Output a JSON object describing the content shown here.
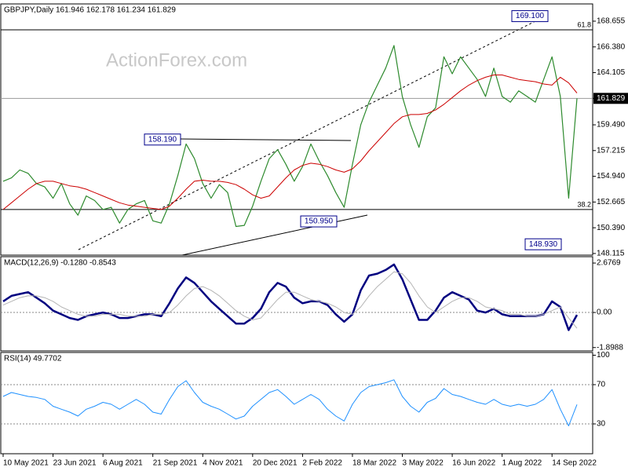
{
  "watermark": "ActionForex.com",
  "chart_data": [
    {
      "type": "line",
      "title": "GBPJPY,Daily 161.946 162.178 161.234 161.829",
      "series": [
        {
          "color": "#2d8a2d",
          "width": 1.2,
          "values": [
            154.5,
            154.8,
            155.5,
            155.2,
            154.3,
            154.0,
            153.0,
            154.3,
            152.5,
            151.5,
            153.2,
            152.8,
            152.0,
            152.2,
            150.8,
            152.0,
            152.5,
            152.8,
            151.0,
            150.8,
            152.5,
            155.0,
            157.8,
            156.5,
            154.3,
            153.0,
            154.2,
            153.5,
            150.5,
            150.6,
            152.3,
            154.5,
            156.5,
            157.3,
            156.0,
            154.5,
            155.8,
            157.8,
            156.3,
            155.0,
            153.5,
            152.2,
            156.0,
            159.5,
            161.5,
            163.0,
            164.5,
            166.5,
            162.0,
            159.5,
            157.5,
            160.2,
            161.0,
            165.5,
            164.0,
            165.5,
            164.5,
            163.5,
            162.0,
            164.5,
            162.0,
            161.5,
            162.5,
            162.0,
            161.5,
            163.5,
            165.5,
            162.0,
            153.0,
            161.829
          ]
        },
        {
          "color": "#cc0000",
          "width": 1,
          "values": [
            152.0,
            152.6,
            153.2,
            153.8,
            154.3,
            154.5,
            154.5,
            154.3,
            154.1,
            154.0,
            153.8,
            153.5,
            153.2,
            152.9,
            152.6,
            152.4,
            152.3,
            152.2,
            152.1,
            152.0,
            152.3,
            153.0,
            153.8,
            154.5,
            154.6,
            154.5,
            154.5,
            154.4,
            154.2,
            153.8,
            153.3,
            153.0,
            153.2,
            154.0,
            154.8,
            155.5,
            155.9,
            156.1,
            156.0,
            155.8,
            155.5,
            155.3,
            155.6,
            156.3,
            157.2,
            158.0,
            158.8,
            159.6,
            160.2,
            160.4,
            160.4,
            160.5,
            160.8,
            161.3,
            161.9,
            162.5,
            163.0,
            163.4,
            163.7,
            163.9,
            163.9,
            163.7,
            163.5,
            163.4,
            163.3,
            163.1,
            163.0,
            163.7,
            163.2,
            162.3
          ]
        }
      ],
      "ylim": [
        147.97,
        170.18
      ],
      "yticks": [
        168.655,
        {
          "value": 166.38,
          "label": "166.380"
        },
        164.105,
        161.829,
        {
          "value": 159.49,
          "label": "159.490"
        },
        157.215,
        {
          "value": 154.94,
          "label": "154.940"
        },
        152.665,
        {
          "value": 150.39,
          "label": "150.390"
        },
        148.115
      ],
      "fib_levels": [
        {
          "ratio": 61.8,
          "value": 167.89
        },
        {
          "ratio": 38.2,
          "value": 152.0
        }
      ],
      "annotations": [
        {
          "value": 169.1,
          "label": "169.100"
        },
        {
          "value": 158.19,
          "label": "158.190"
        },
        {
          "value": 150.95,
          "label": "150.950"
        },
        {
          "value": 148.93,
          "label": "148.930"
        }
      ],
      "annotation_color": "#00008b"
    },
    {
      "type": "line",
      "title": "MACD(12,26,9) -0.1280 -0.8543",
      "series": [
        {
          "color": "#000080",
          "width": 2.5,
          "values": [
            0.6,
            0.9,
            1.0,
            1.1,
            0.8,
            0.5,
            0.1,
            -0.1,
            -0.3,
            -0.4,
            -0.2,
            -0.1,
            0.0,
            -0.1,
            -0.3,
            -0.3,
            -0.2,
            -0.1,
            -0.1,
            -0.2,
            0.5,
            1.3,
            1.9,
            1.6,
            1.1,
            0.6,
            0.2,
            -0.2,
            -0.6,
            -0.6,
            -0.3,
            0.2,
            1.1,
            1.6,
            1.4,
            0.8,
            0.5,
            0.6,
            0.6,
            0.4,
            -0.1,
            -0.5,
            -0.1,
            1.2,
            2.0,
            2.1,
            2.3,
            2.6,
            1.8,
            0.7,
            -0.4,
            -0.4,
            0.1,
            0.8,
            1.1,
            0.9,
            0.7,
            0.1,
            0.0,
            0.2,
            -0.1,
            -0.2,
            -0.2,
            -0.2,
            -0.2,
            -0.1,
            0.6,
            0.3,
            -0.95,
            -0.128
          ]
        },
        {
          "color": "#b4b4b4",
          "width": 1,
          "values": [
            0.4,
            0.6,
            0.8,
            0.9,
            0.9,
            0.8,
            0.6,
            0.3,
            0.1,
            -0.1,
            -0.2,
            -0.2,
            -0.1,
            -0.1,
            -0.1,
            -0.2,
            -0.2,
            -0.2,
            -0.1,
            -0.1,
            0.0,
            0.4,
            0.9,
            1.3,
            1.4,
            1.2,
            0.9,
            0.5,
            0.1,
            -0.2,
            -0.4,
            -0.3,
            0.2,
            0.7,
            1.1,
            1.1,
            0.9,
            0.7,
            0.6,
            0.5,
            0.3,
            0.0,
            -0.1,
            0.3,
            0.9,
            1.4,
            1.8,
            2.2,
            2.1,
            1.6,
            0.9,
            0.3,
            0.0,
            0.3,
            0.6,
            0.8,
            0.8,
            0.6,
            0.3,
            0.2,
            0.1,
            -0.1,
            -0.1,
            -0.2,
            -0.2,
            -0.1,
            0.1,
            0.3,
            -0.3,
            -0.8543
          ]
        }
      ],
      "ylim": [
        -2.08,
        3.02
      ],
      "yticks": [
        2.6769,
        {
          "value": 0,
          "label": "0.00"
        },
        -1.8988
      ],
      "levels": [
        0
      ]
    },
    {
      "type": "line",
      "title": "RSI(14) 49.7702",
      "categories": [
        "10 May 2021",
        null,
        null,
        null,
        null,
        null,
        "23 Jun 2021",
        null,
        null,
        null,
        null,
        null,
        "6 Aug 2021",
        null,
        null,
        null,
        null,
        null,
        "21 Sep 2021",
        null,
        null,
        null,
        null,
        null,
        "4 Nov 2021",
        null,
        null,
        null,
        null,
        null,
        "20 Dec 2021",
        null,
        null,
        null,
        null,
        null,
        "2 Feb 2022",
        null,
        null,
        null,
        null,
        null,
        "18 Mar 2022",
        null,
        null,
        null,
        null,
        null,
        "3 May 2022",
        null,
        null,
        null,
        null,
        null,
        "16 Jun 2022",
        null,
        null,
        null,
        null,
        null,
        "1 Aug 2022",
        null,
        null,
        null,
        null,
        null,
        "14 Sep 2022",
        null,
        null,
        null
      ],
      "series": [
        {
          "color": "#1e90ff",
          "width": 1,
          "values": [
            58,
            62,
            60,
            58,
            57,
            55,
            48,
            45,
            42,
            38,
            45,
            48,
            52,
            50,
            45,
            50,
            55,
            50,
            42,
            40,
            55,
            68,
            74,
            62,
            52,
            48,
            45,
            40,
            35,
            38,
            48,
            55,
            62,
            65,
            58,
            50,
            55,
            60,
            55,
            45,
            38,
            33,
            50,
            62,
            68,
            70,
            72,
            75,
            58,
            48,
            42,
            52,
            56,
            66,
            60,
            58,
            55,
            52,
            50,
            55,
            50,
            48,
            50,
            48,
            50,
            55,
            65,
            45,
            28,
            49.7702
          ]
        }
      ],
      "ylim": [
        -0.4,
        102.8
      ],
      "yticks": [
        100,
        70,
        30
      ],
      "levels": [
        70,
        30
      ]
    }
  ]
}
